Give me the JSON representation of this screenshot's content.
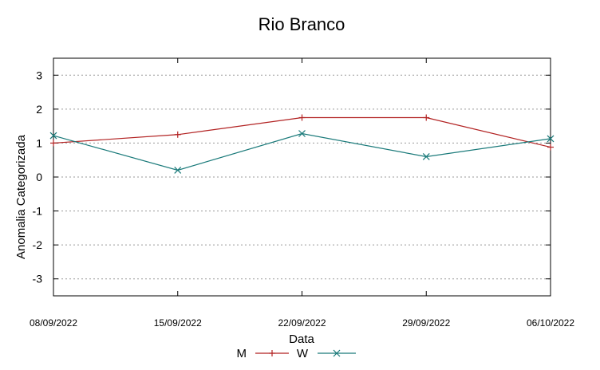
{
  "chart_data": {
    "type": "line",
    "title": "Rio Branco",
    "xlabel": "Data",
    "ylabel": "Anomalia Categorizada",
    "categories": [
      "08/09/2022",
      "15/09/2022",
      "22/09/2022",
      "29/09/2022",
      "06/10/2022"
    ],
    "yticks": [
      "3",
      "2",
      "1",
      "0",
      "-1",
      "-2",
      "-3"
    ],
    "ylim": [
      -3.5,
      3.5
    ],
    "grid": true,
    "legend_position": "bottom-center",
    "series": [
      {
        "name": "M",
        "values": [
          1.0,
          1.25,
          1.75,
          1.75,
          0.88
        ],
        "color": "#b22222",
        "marker": "plus"
      },
      {
        "name": "W",
        "values": [
          1.22,
          0.2,
          1.28,
          0.6,
          1.13
        ],
        "color": "#1a7a7a",
        "marker": "cross"
      }
    ]
  }
}
